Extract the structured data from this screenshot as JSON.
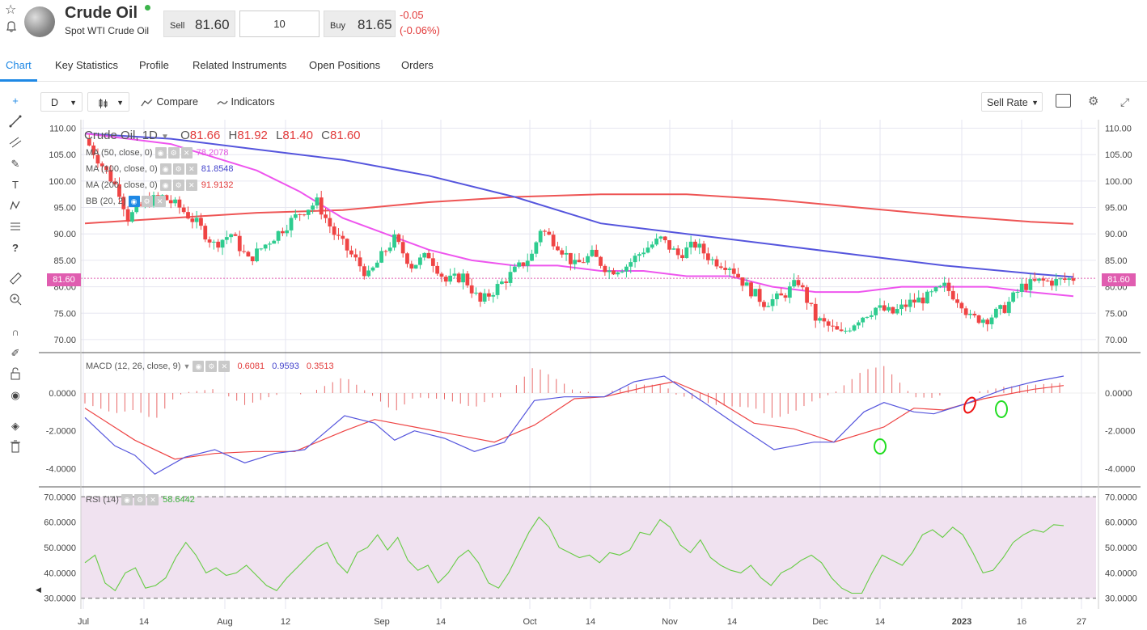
{
  "header": {
    "title": "Crude Oil",
    "subtitle": "Spot WTI Crude Oil",
    "sell_label": "Sell",
    "sell_price": "81.60",
    "quantity": "10",
    "buy_label": "Buy",
    "buy_price": "81.65",
    "change": "-0.05",
    "change_pct": "(-0.06%)"
  },
  "tabs": [
    "Chart",
    "Key Statistics",
    "Profile",
    "Related Instruments",
    "Open Positions",
    "Orders"
  ],
  "toolbar": {
    "interval": "D",
    "compare": "Compare",
    "indicators": "Indicators",
    "rate_type": "Sell Rate"
  },
  "legend": {
    "symbol": "Crude Oil, 1D",
    "o_label": "O",
    "o_val": "81.66",
    "h_label": "H",
    "h_val": "81.92",
    "l_label": "L",
    "l_val": "81.40",
    "c_label": "C",
    "c_val": "81.60",
    "ma50": "MA (50, close, 0)",
    "ma50_val": "78.2078",
    "ma100": "MA (100, close, 0)",
    "ma100_val": "81.8548",
    "ma200": "MA (200, close, 0)",
    "ma200_val": "91.9132",
    "bb": "BB (20, 2)",
    "macd": "MACD (12, 26, close, 9)",
    "macd_hist": "0.6081",
    "macd_line": "0.9593",
    "macd_signal": "0.3513",
    "rsi": "RSI (14)",
    "rsi_val": "58.6442",
    "price_tag": "81.60"
  },
  "colors": {
    "up": "#2ecc8f",
    "down": "#ef4444",
    "ma50": "#ee55ee",
    "ma100": "#5555dd",
    "ma200": "#ee5555",
    "macd_line": "#5555dd",
    "signal": "#ee4444",
    "rsi": "#66cc44",
    "rsi_bg": "#f0e2f0",
    "accent": "#1e88e5"
  },
  "chart_data": [
    {
      "type": "candlestick",
      "title": "Crude Oil, 1D",
      "ylim": [
        68,
        111
      ],
      "y_ticks": [
        "110.00",
        "105.00",
        "100.00",
        "95.00",
        "90.00",
        "85.00",
        "80.00",
        "75.00",
        "70.00"
      ],
      "x_ticks": [
        "Jul",
        "14",
        "Aug",
        "12",
        "Sep",
        "14",
        "Oct",
        "14",
        "Nov",
        "14",
        "Dec",
        "14",
        "2023",
        "16",
        "27"
      ],
      "close_path": [
        [
          0,
          108
        ],
        [
          4,
          103
        ],
        [
          8,
          98
        ],
        [
          10,
          93
        ],
        [
          14,
          96
        ],
        [
          18,
          97
        ],
        [
          22,
          95
        ],
        [
          26,
          92
        ],
        [
          30,
          88
        ],
        [
          34,
          90
        ],
        [
          38,
          85
        ],
        [
          42,
          88
        ],
        [
          46,
          91
        ],
        [
          50,
          94
        ],
        [
          54,
          96
        ],
        [
          58,
          90
        ],
        [
          62,
          86
        ],
        [
          66,
          82
        ],
        [
          70,
          87
        ],
        [
          72,
          89
        ],
        [
          76,
          84
        ],
        [
          80,
          86
        ],
        [
          84,
          81
        ],
        [
          88,
          82
        ],
        [
          92,
          77
        ],
        [
          96,
          80
        ],
        [
          100,
          83
        ],
        [
          104,
          86
        ],
        [
          106,
          91
        ],
        [
          110,
          88
        ],
        [
          114,
          84
        ],
        [
          118,
          86
        ],
        [
          122,
          83
        ],
        [
          126,
          84
        ],
        [
          130,
          87
        ],
        [
          134,
          89
        ],
        [
          138,
          86
        ],
        [
          142,
          88
        ],
        [
          146,
          85
        ],
        [
          150,
          84
        ],
        [
          154,
          80
        ],
        [
          158,
          77
        ],
        [
          162,
          78
        ],
        [
          166,
          81
        ],
        [
          170,
          74
        ],
        [
          174,
          72
        ],
        [
          176,
          71
        ],
        [
          180,
          74
        ],
        [
          184,
          76
        ],
        [
          188,
          75
        ],
        [
          192,
          77
        ],
        [
          196,
          78
        ],
        [
          200,
          80
        ],
        [
          204,
          77
        ],
        [
          206,
          74
        ],
        [
          210,
          74
        ],
        [
          214,
          76
        ],
        [
          218,
          80
        ],
        [
          222,
          81
        ],
        [
          226,
          81
        ],
        [
          230,
          81.6
        ]
      ],
      "ma50_path": [
        [
          0,
          109
        ],
        [
          20,
          107
        ],
        [
          40,
          102
        ],
        [
          50,
          98
        ],
        [
          60,
          93
        ],
        [
          70,
          90
        ],
        [
          80,
          87
        ],
        [
          90,
          85
        ],
        [
          100,
          84
        ],
        [
          110,
          84
        ],
        [
          120,
          83
        ],
        [
          130,
          83
        ],
        [
          140,
          82
        ],
        [
          150,
          82
        ],
        [
          160,
          80
        ],
        [
          170,
          79
        ],
        [
          180,
          79
        ],
        [
          190,
          80
        ],
        [
          200,
          80
        ],
        [
          210,
          80
        ],
        [
          220,
          79
        ],
        [
          230,
          78.2
        ]
      ],
      "ma100_path": [
        [
          0,
          109
        ],
        [
          20,
          108
        ],
        [
          40,
          106
        ],
        [
          60,
          104
        ],
        [
          80,
          101
        ],
        [
          100,
          97
        ],
        [
          120,
          92
        ],
        [
          140,
          90
        ],
        [
          160,
          88
        ],
        [
          180,
          86
        ],
        [
          200,
          84
        ],
        [
          220,
          82.5
        ],
        [
          230,
          81.85
        ]
      ],
      "ma200_path": [
        [
          0,
          92
        ],
        [
          20,
          93
        ],
        [
          40,
          94
        ],
        [
          60,
          94.5
        ],
        [
          80,
          96
        ],
        [
          100,
          97
        ],
        [
          120,
          97.5
        ],
        [
          140,
          97.5
        ],
        [
          160,
          96.5
        ],
        [
          180,
          95
        ],
        [
          200,
          93.5
        ],
        [
          220,
          92.3
        ],
        [
          230,
          91.9
        ]
      ],
      "last_price": 81.6
    },
    {
      "type": "line",
      "title": "MACD (12, 26, close, 9)",
      "ylim": [
        -4.8,
        1.8
      ],
      "y_ticks": [
        "0.0000",
        "-2.0000",
        "-4.0000"
      ],
      "macd": [
        [
          0,
          -1.3
        ],
        [
          6,
          -2.8
        ],
        [
          10,
          -3.3
        ],
        [
          14,
          -4.3
        ],
        [
          20,
          -3.4
        ],
        [
          26,
          -3.0
        ],
        [
          32,
          -3.7
        ],
        [
          38,
          -3.2
        ],
        [
          44,
          -3.0
        ],
        [
          52,
          -1.2
        ],
        [
          58,
          -1.6
        ],
        [
          62,
          -2.5
        ],
        [
          66,
          -2.0
        ],
        [
          72,
          -2.4
        ],
        [
          78,
          -3.1
        ],
        [
          84,
          -2.6
        ],
        [
          90,
          -0.4
        ],
        [
          96,
          -0.2
        ],
        [
          104,
          -0.2
        ],
        [
          110,
          0.6
        ],
        [
          116,
          0.9
        ],
        [
          124,
          -0.5
        ],
        [
          130,
          -1.6
        ],
        [
          138,
          -3.0
        ],
        [
          146,
          -2.6
        ],
        [
          150,
          -2.6
        ],
        [
          156,
          -1.0
        ],
        [
          160,
          -0.5
        ],
        [
          166,
          -1.0
        ],
        [
          170,
          -1.1
        ],
        [
          176,
          -0.6
        ],
        [
          184,
          0.2
        ],
        [
          190,
          0.6
        ],
        [
          196,
          0.9
        ]
      ],
      "signal": [
        [
          0,
          -0.8
        ],
        [
          10,
          -2.5
        ],
        [
          18,
          -3.5
        ],
        [
          26,
          -3.2
        ],
        [
          34,
          -3.1
        ],
        [
          42,
          -3.1
        ],
        [
          52,
          -2.0
        ],
        [
          58,
          -1.4
        ],
        [
          66,
          -1.8
        ],
        [
          74,
          -2.2
        ],
        [
          82,
          -2.6
        ],
        [
          90,
          -1.7
        ],
        [
          98,
          -0.3
        ],
        [
          104,
          -0.2
        ],
        [
          112,
          0.3
        ],
        [
          118,
          0.6
        ],
        [
          126,
          -0.3
        ],
        [
          134,
          -1.6
        ],
        [
          142,
          -1.9
        ],
        [
          150,
          -2.6
        ],
        [
          160,
          -1.8
        ],
        [
          166,
          -0.8
        ],
        [
          172,
          -0.9
        ],
        [
          180,
          -0.3
        ],
        [
          190,
          0.2
        ],
        [
          196,
          0.4
        ]
      ],
      "hist_last": 0.6081,
      "macd_last": 0.9593,
      "signal_last": 0.3513
    },
    {
      "type": "line",
      "title": "RSI (14)",
      "ylim": [
        28,
        72
      ],
      "y_ticks": [
        "70.0000",
        "60.0000",
        "50.0000",
        "40.0000",
        "30.0000"
      ],
      "values": [
        44,
        47,
        36,
        33,
        40,
        42,
        34,
        35,
        38,
        46,
        52,
        47,
        40,
        42,
        39,
        40,
        43,
        39,
        35,
        33,
        38,
        42,
        46,
        50,
        52,
        44,
        40,
        48,
        50,
        55,
        49,
        54,
        45,
        41,
        43,
        36,
        40,
        46,
        49,
        44,
        36,
        34,
        40,
        48,
        56,
        62,
        58,
        50,
        48,
        46,
        47,
        44,
        48,
        47,
        49,
        56,
        55,
        61,
        58,
        51,
        48,
        53,
        46,
        43,
        41,
        40,
        43,
        38,
        35,
        40,
        42,
        45,
        47,
        44,
        38,
        34,
        32,
        32,
        40,
        47,
        45,
        43,
        48,
        55,
        57,
        54,
        58,
        55,
        48,
        40,
        41,
        46,
        52,
        55,
        57,
        56,
        59,
        58.64
      ]
    }
  ]
}
